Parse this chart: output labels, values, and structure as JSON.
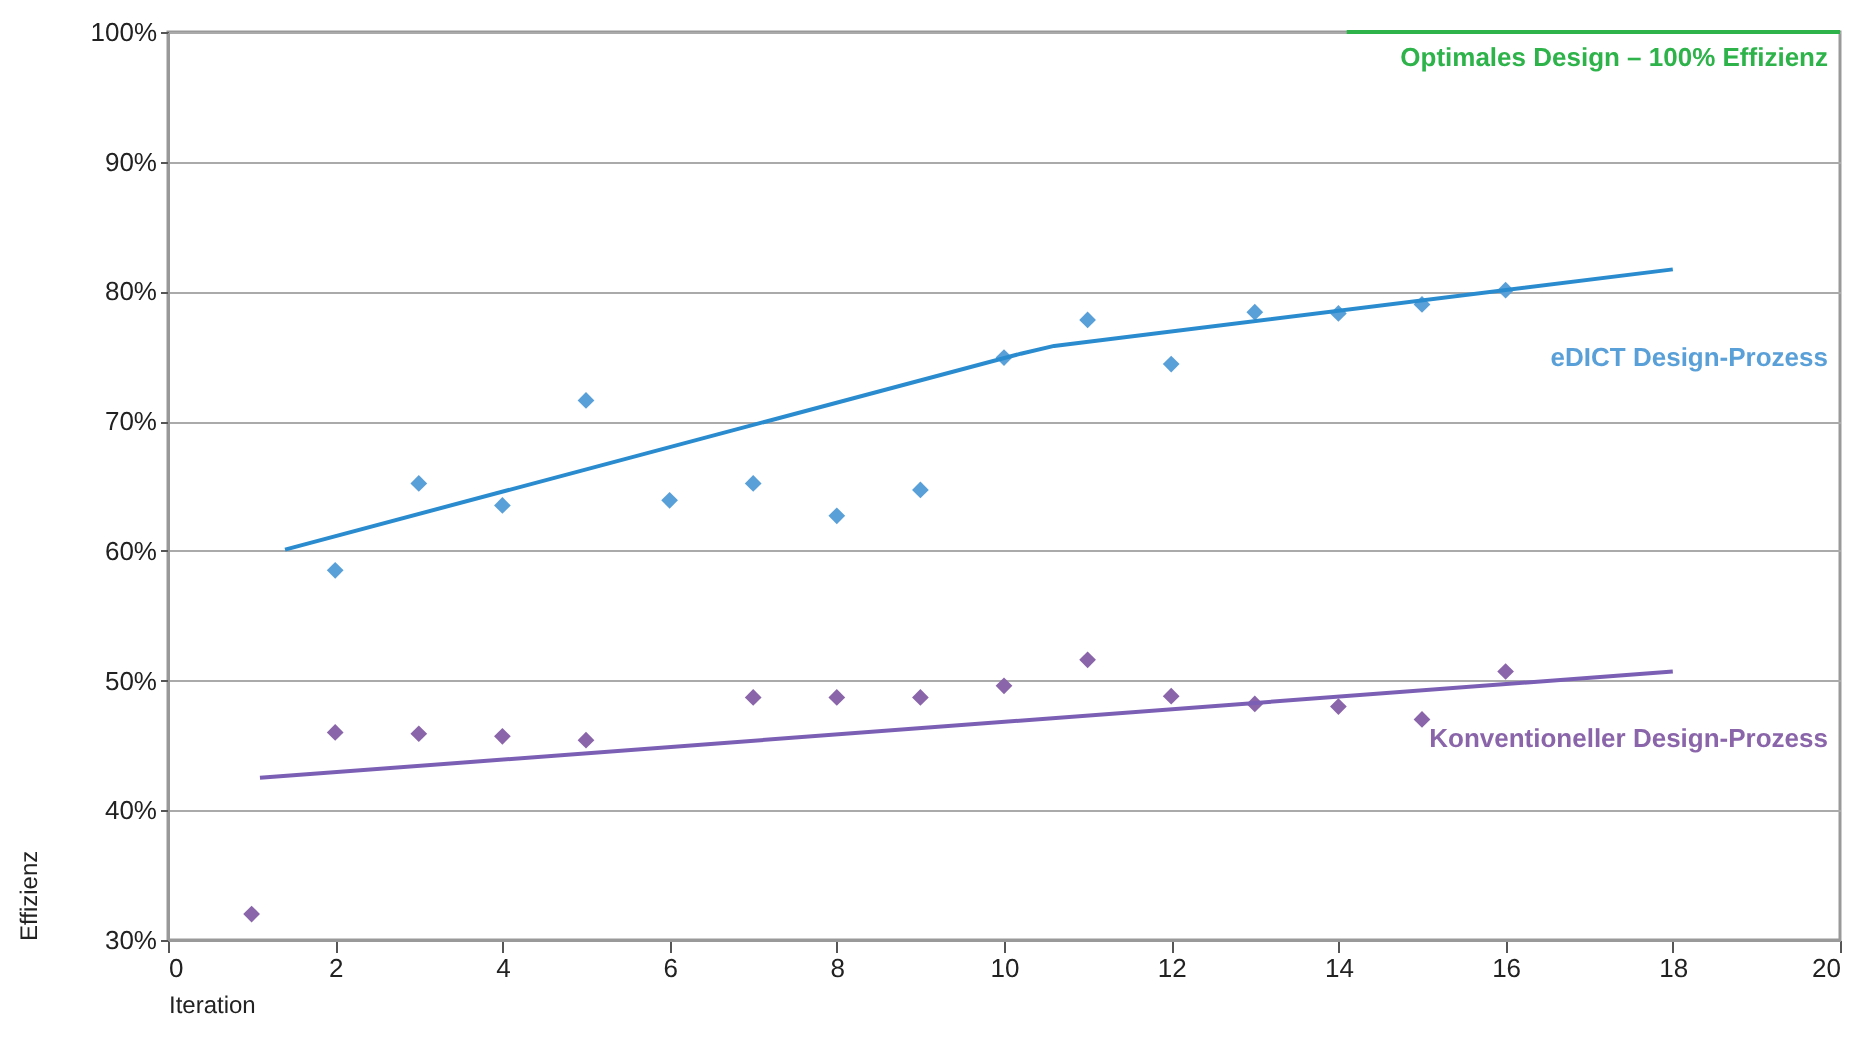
{
  "chart_data": {
    "type": "scatter",
    "xlabel": "Iteration",
    "ylabel": "Effizienz",
    "xlim": [
      0,
      20
    ],
    "ylim": [
      30,
      100
    ],
    "xticks": [
      0,
      2,
      4,
      6,
      8,
      10,
      12,
      14,
      16,
      18,
      20
    ],
    "yticks": [
      {
        "value": 30,
        "label": "30%"
      },
      {
        "value": 40,
        "label": "40%"
      },
      {
        "value": 50,
        "label": "50%"
      },
      {
        "value": 60,
        "label": "60%"
      },
      {
        "value": 70,
        "label": "70%"
      },
      {
        "value": 80,
        "label": "80%"
      },
      {
        "value": 90,
        "label": "90%"
      },
      {
        "value": 100,
        "label": "100%"
      }
    ],
    "grid": "y",
    "marker": "diamond",
    "series": [
      {
        "name": "eDICT Design-Prozess",
        "color": "#5aa0d8",
        "x": [
          2,
          3,
          4,
          5,
          6,
          7,
          8,
          9,
          10,
          11,
          12,
          13,
          14,
          15,
          16
        ],
        "values": [
          58.5,
          65.2,
          63.5,
          71.6,
          63.9,
          65.2,
          62.7,
          64.7,
          74.9,
          77.8,
          74.4,
          78.4,
          78.3,
          79.0,
          80.1
        ]
      },
      {
        "type": "line",
        "marker": "none",
        "color": "#2a8ccf",
        "x": [
          1.4,
          10.2,
          10.6,
          18
        ],
        "values": [
          60.1,
          75.2,
          75.8,
          81.7
        ]
      },
      {
        "name": "Konventioneller Design-Prozess",
        "color": "#8a65aa",
        "x": [
          1,
          2,
          3,
          4,
          5,
          7,
          8,
          9,
          10,
          11,
          12,
          13,
          14,
          15,
          16
        ],
        "values": [
          32.0,
          46.0,
          45.9,
          45.7,
          45.4,
          48.7,
          48.7,
          48.7,
          49.6,
          51.6,
          48.8,
          48.2,
          48.0,
          47.0,
          50.7
        ]
      },
      {
        "type": "line",
        "marker": "none",
        "color": "#7b5fb5",
        "x": [
          1.1,
          18
        ],
        "values": [
          42.5,
          50.7
        ]
      },
      {
        "name": "Optimales Design – 100% Effizienz",
        "type": "line",
        "marker": "none",
        "color": "#2db34a",
        "x": [
          14.1,
          20
        ],
        "values": [
          100,
          100
        ]
      }
    ]
  }
}
